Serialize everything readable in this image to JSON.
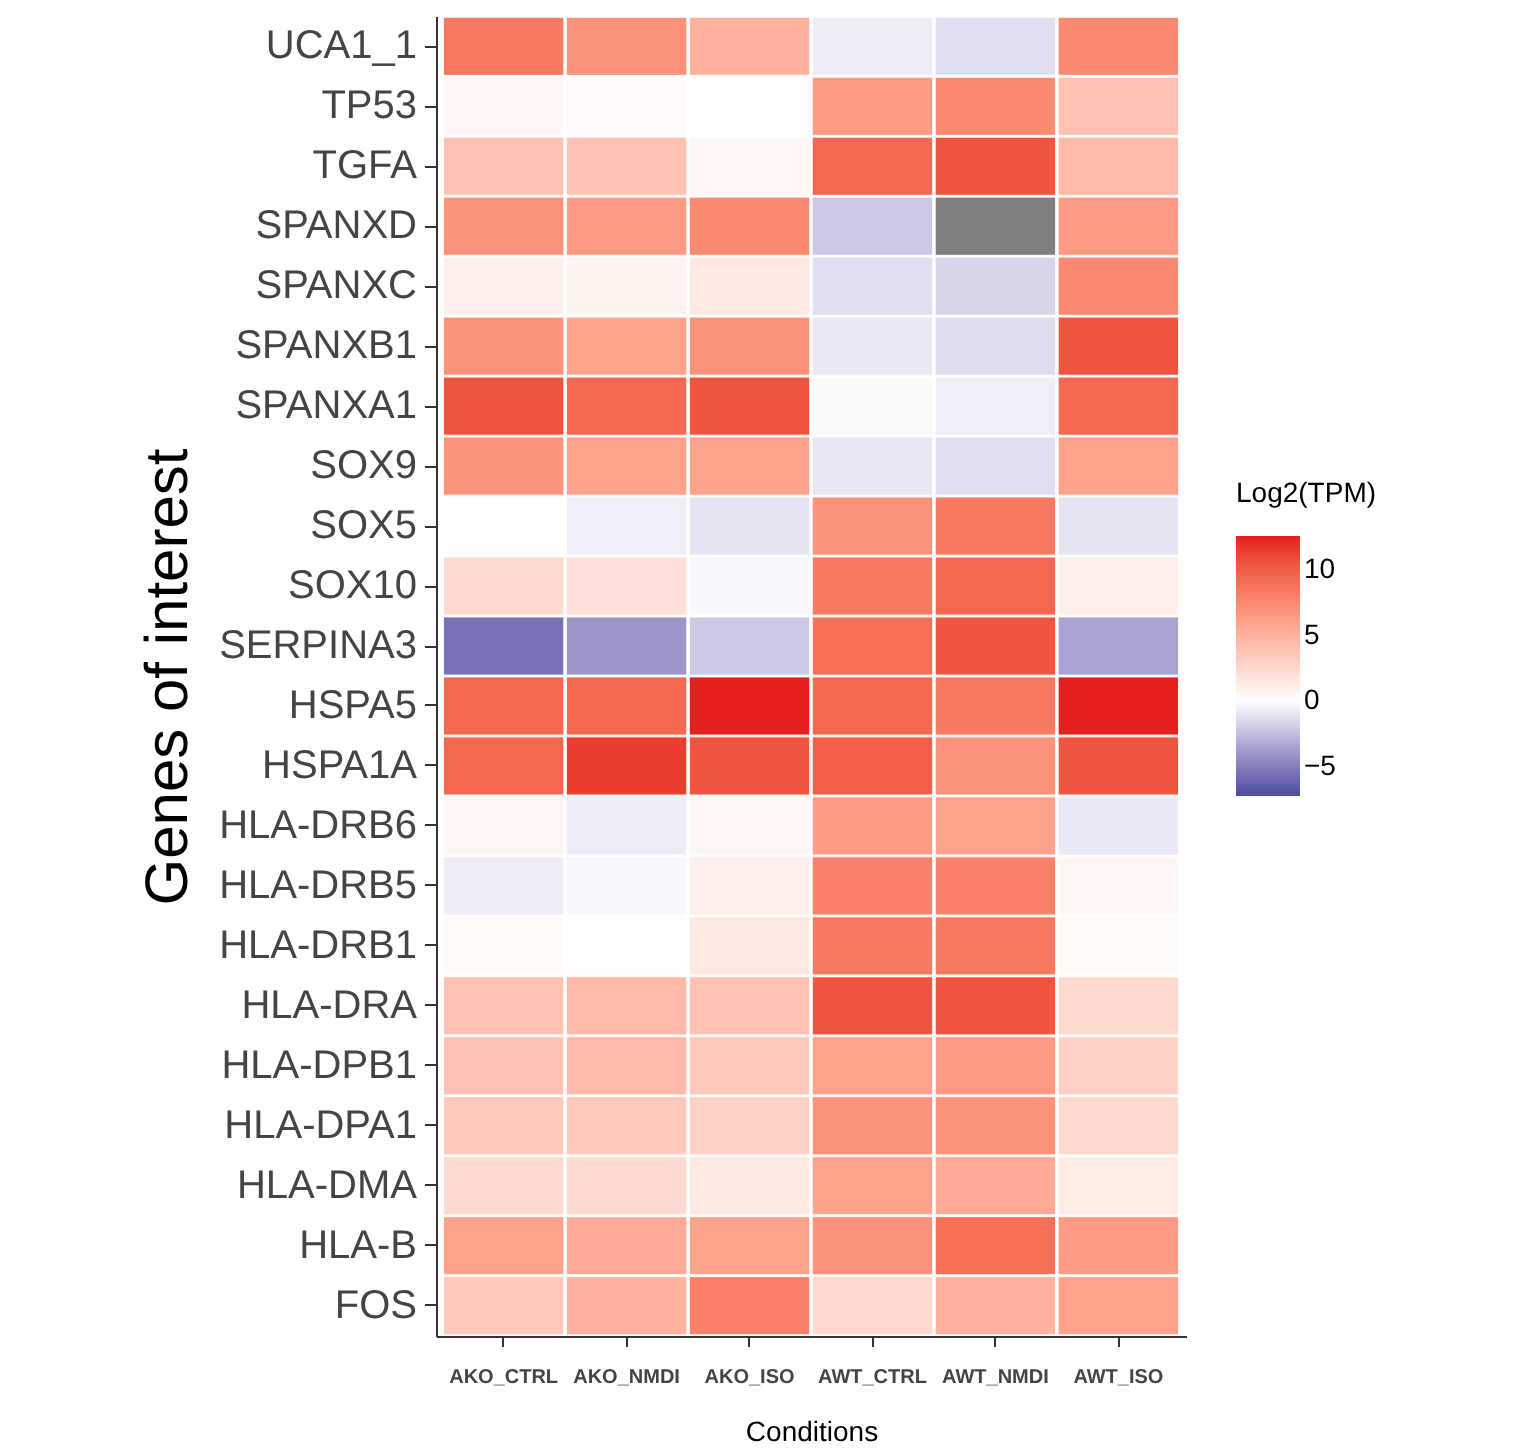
{
  "chart_data": {
    "type": "heatmap",
    "xlabel": "Conditions",
    "ylabel": "Genes of interest",
    "legend_title": "Log2(TPM)",
    "categories": [
      "AKO_CTRL",
      "AKO_NMDI",
      "AKO_ISO",
      "AWT_CTRL",
      "AWT_NMDI",
      "AWT_ISO"
    ],
    "y_categories": [
      "UCA1_1",
      "TP53",
      "TGFA",
      "SPANXD",
      "SPANXC",
      "SPANXB1",
      "SPANXA1",
      "SOX9",
      "SOX5",
      "SOX10",
      "SERPINA3",
      "HSPA5",
      "HSPA1A",
      "HLA-DRB6",
      "HLA-DRB5",
      "HLA-DRB1",
      "HLA-DRA",
      "HLA-DPB1",
      "HLA-DPA1",
      "HLA-DMA",
      "HLA-B",
      "FOS"
    ],
    "cells": [
      [
        8.5,
        7,
        5,
        -0.7,
        -1.2,
        7.5
      ],
      [
        0.5,
        0.3,
        0.1,
        6.5,
        7.5,
        4
      ],
      [
        4,
        4,
        0.5,
        9.5,
        10.5,
        4.5
      ],
      [
        7,
        6.5,
        7.5,
        -2,
        null,
        6.5
      ],
      [
        1,
        0.8,
        1.5,
        -1.2,
        -1.6,
        7.5
      ],
      [
        7,
        6,
        7,
        -0.8,
        -1.3,
        10.5
      ],
      [
        10.5,
        9.5,
        10.5,
        -0.2,
        -0.6,
        9.5
      ],
      [
        7,
        6,
        6,
        -0.9,
        -1.2,
        6
      ],
      [
        0.1,
        -0.6,
        -1,
        7,
        8.5,
        -1
      ],
      [
        2.5,
        2,
        -0.3,
        8.5,
        9.5,
        1
      ],
      [
        -5.5,
        -4,
        -2,
        9,
        10.5,
        -3.5
      ],
      [
        9.5,
        9.5,
        12.5,
        9.5,
        8.5,
        12.5
      ],
      [
        9.5,
        11.5,
        10.5,
        10,
        7,
        10.5
      ],
      [
        0.5,
        -0.7,
        0.5,
        6.5,
        6,
        -0.8
      ],
      [
        -0.7,
        -0.3,
        1,
        8,
        8,
        0.5
      ],
      [
        0.4,
        0.2,
        1.5,
        8.5,
        8.5,
        0.4
      ],
      [
        4,
        4.5,
        4,
        10.5,
        10.5,
        2.5
      ],
      [
        4,
        4.5,
        3.5,
        6,
        6.5,
        3
      ],
      [
        3.5,
        3.5,
        3,
        7,
        7,
        2.5
      ],
      [
        2.5,
        2.5,
        1.5,
        6,
        5.5,
        1.2
      ],
      [
        6,
        5.5,
        6,
        7,
        9,
        6.5
      ],
      [
        3.5,
        5,
        8,
        2.5,
        5,
        6
      ]
    ],
    "clim": [
      -7.2,
      12.6
    ],
    "cticks": [
      -5,
      0,
      5,
      10
    ]
  }
}
